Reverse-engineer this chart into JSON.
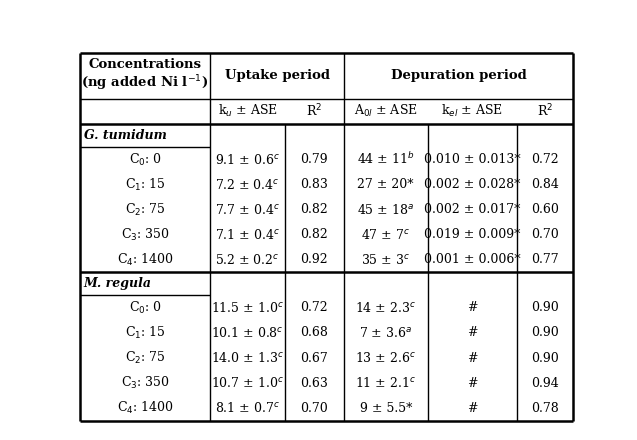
{
  "bg_color": "#ffffff",
  "text_color": "#000000",
  "border_color": "#000000",
  "fontsize": 9.0,
  "fontfamily": "serif",
  "rows_gt": [
    [
      "C$_0$: 0",
      "9.1 ± 0.6$^c$",
      "0.79",
      "44 ± 11$^b$",
      "0.010 ± 0.013*",
      "0.72"
    ],
    [
      "C$_1$: 15",
      "7.2 ± 0.4$^c$",
      "0.83",
      "27 ± 20*",
      "0.002 ± 0.028*",
      "0.84"
    ],
    [
      "C$_2$: 75",
      "7.7 ± 0.4$^c$",
      "0.82",
      "45 ± 18$^a$",
      "0.002 ± 0.017*",
      "0.60"
    ],
    [
      "C$_3$: 350",
      "7.1 ± 0.4$^c$",
      "0.82",
      "47 ± 7$^c$",
      "0.019 ± 0.009*",
      "0.70"
    ],
    [
      "C$_4$: 1400",
      "5.2 ± 0.2$^c$",
      "0.92",
      "35 ± 3$^c$",
      "0.001 ± 0.006*",
      "0.77"
    ]
  ],
  "rows_mr": [
    [
      "C$_0$: 0",
      "11.5 ± 1.0$^c$",
      "0.72",
      "14 ± 2.3$^c$",
      "#",
      "0.90"
    ],
    [
      "C$_1$: 15",
      "10.1 ± 0.8$^c$",
      "0.68",
      "7 ± 3.6$^a$",
      "#",
      "0.90"
    ],
    [
      "C$_2$: 75",
      "14.0 ± 1.3$^c$",
      "0.67",
      "13 ± 2.6$^c$",
      "#",
      "0.90"
    ],
    [
      "C$_3$: 350",
      "10.7 ± 1.0$^c$",
      "0.63",
      "11 ± 2.1$^c$",
      "#",
      "0.94"
    ],
    [
      "C$_4$: 1400",
      "8.1 ± 0.7$^c$",
      "0.70",
      "9 ± 5.5*",
      "#",
      "0.78"
    ]
  ]
}
